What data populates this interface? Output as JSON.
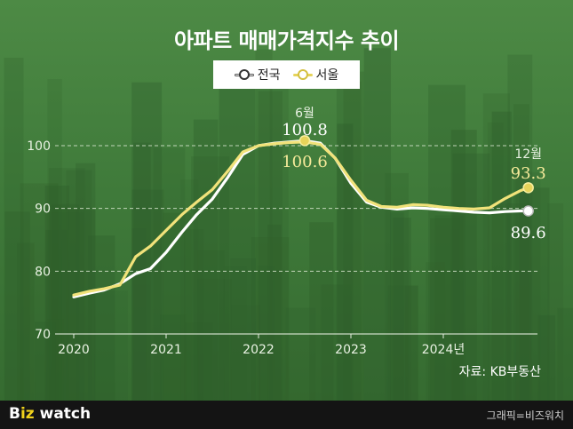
{
  "title": "아파트 매매가격지수 추이",
  "source": "자료: KB부동산",
  "footer": {
    "brand_prefix": "B",
    "brand_mark": "iz",
    "brand_suffix": " watch",
    "credit": "그래픽=비즈워치"
  },
  "colors": {
    "national": "#ffffff",
    "seoul": "#f1e27a",
    "seoul_label": "#f5ea9a",
    "grid": "#d8e6cf",
    "axis_text": "#e9f2e3"
  },
  "chart_data": {
    "type": "line",
    "title": "아파트 매매가격지수 추이",
    "x_ticks": [
      "2020",
      "2021",
      "2022",
      "2023",
      "2024년"
    ],
    "y_ticks": [
      "70",
      "80",
      "90",
      "100"
    ],
    "ylim": [
      70,
      103
    ],
    "xlim": [
      2020,
      2025
    ],
    "grid": true,
    "legend": "top-center",
    "series": [
      {
        "name": "전국",
        "color": "#ffffff",
        "x": [
          2020.0,
          2020.17,
          2020.33,
          2020.5,
          2020.67,
          2020.83,
          2021.0,
          2021.17,
          2021.33,
          2021.5,
          2021.67,
          2021.83,
          2022.0,
          2022.17,
          2022.33,
          2022.5,
          2022.67,
          2022.83,
          2023.0,
          2023.17,
          2023.33,
          2023.5,
          2023.67,
          2023.83,
          2024.0,
          2024.17,
          2024.33,
          2024.5,
          2024.67,
          2024.83,
          2024.92
        ],
        "values": [
          75.9,
          76.5,
          77.0,
          78.0,
          79.6,
          80.4,
          83.0,
          86.2,
          89.0,
          91.5,
          95.0,
          98.6,
          100.0,
          100.4,
          100.6,
          100.8,
          100.4,
          98.0,
          94.0,
          91.0,
          90.2,
          89.9,
          90.1,
          90.0,
          89.8,
          89.6,
          89.4,
          89.3,
          89.5,
          89.6,
          89.6
        ]
      },
      {
        "name": "서울",
        "color": "#f1e27a",
        "x": [
          2020.0,
          2020.17,
          2020.33,
          2020.5,
          2020.67,
          2020.83,
          2021.0,
          2021.17,
          2021.33,
          2021.5,
          2021.67,
          2021.83,
          2022.0,
          2022.17,
          2022.33,
          2022.5,
          2022.67,
          2022.83,
          2023.0,
          2023.17,
          2023.33,
          2023.5,
          2023.67,
          2023.83,
          2024.0,
          2024.17,
          2024.33,
          2024.5,
          2024.67,
          2024.83,
          2024.92
        ],
        "values": [
          76.2,
          76.8,
          77.2,
          77.8,
          82.3,
          84.0,
          86.5,
          89.0,
          91.0,
          93.0,
          96.0,
          99.0,
          100.0,
          100.3,
          100.5,
          100.6,
          100.2,
          98.0,
          94.5,
          91.3,
          90.3,
          90.2,
          90.6,
          90.5,
          90.2,
          90.0,
          89.9,
          90.1,
          91.6,
          92.8,
          93.3
        ]
      }
    ],
    "annotations": [
      {
        "text": "6월",
        "x": 2022.5,
        "y": 100.8,
        "role": "month"
      },
      {
        "text": "100.8",
        "x": 2022.5,
        "y": 100.8,
        "series": "전국"
      },
      {
        "text": "100.6",
        "x": 2022.5,
        "y": 100.6,
        "series": "서울"
      },
      {
        "text": "12월",
        "x": 2024.92,
        "y": 93.3,
        "role": "month"
      },
      {
        "text": "93.3",
        "x": 2024.92,
        "y": 93.3,
        "series": "서울"
      },
      {
        "text": "89.6",
        "x": 2024.92,
        "y": 89.6,
        "series": "전국"
      }
    ]
  }
}
